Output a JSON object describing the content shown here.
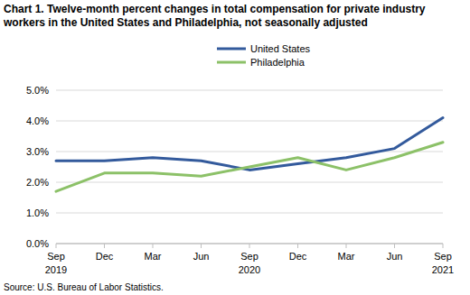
{
  "chart_data": {
    "type": "line",
    "title": "Chart 1. Twelve-month percent changes in total compensation for private industry workers in the United States and Philadelphia, not seasonally adjusted",
    "source": "Source: U.S. Bureau of Labor Statistics.",
    "categories": [
      "Sep 2019",
      "Dec",
      "Mar",
      "Jun",
      "Sep 2020",
      "Dec",
      "Mar",
      "Jun",
      "Sep 2021"
    ],
    "series": [
      {
        "name": "United States",
        "color": "#335a9c",
        "values": [
          2.7,
          2.7,
          2.8,
          2.7,
          2.4,
          2.6,
          2.8,
          3.1,
          4.1
        ]
      },
      {
        "name": "Philadelphia",
        "color": "#8cc168",
        "values": [
          1.7,
          2.3,
          2.3,
          2.2,
          2.5,
          2.8,
          2.4,
          2.8,
          3.3
        ]
      }
    ],
    "ylim": [
      0,
      5
    ],
    "yticks": [
      {
        "value": 0,
        "label": "0.0%"
      },
      {
        "value": 1,
        "label": "1.0%"
      },
      {
        "value": 2,
        "label": "2.0%"
      },
      {
        "value": 3,
        "label": "3.0%"
      },
      {
        "value": 4,
        "label": "4.0%"
      },
      {
        "value": 5,
        "label": "5.0%"
      }
    ],
    "grid": true,
    "legend": "top"
  }
}
